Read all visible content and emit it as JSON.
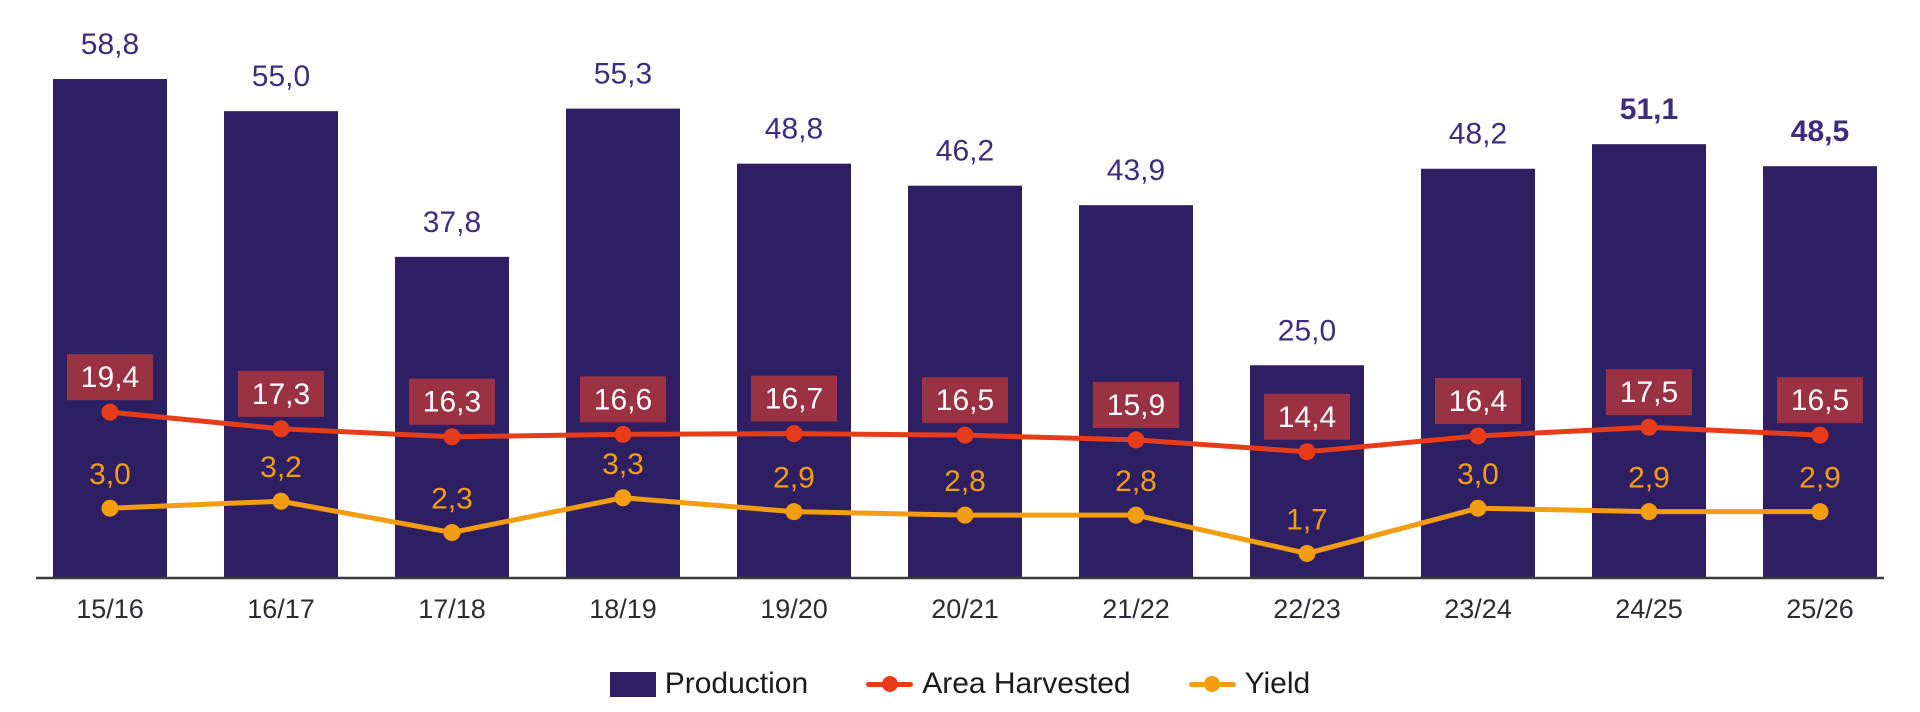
{
  "chart_data": {
    "type": "bar",
    "title": "",
    "categories": [
      "15/16",
      "16/17",
      "17/18",
      "18/19",
      "19/20",
      "20/21",
      "21/22",
      "22/23",
      "23/24",
      "24/25",
      "25/26"
    ],
    "decimal_separator": ",",
    "grid": false,
    "legend_position": "bottom",
    "value_labels": true,
    "series": [
      {
        "name": "Production",
        "type": "bar",
        "color": "#2e1f63",
        "label_color": "#3e2d7e",
        "values": [
          58.8,
          55.0,
          37.8,
          55.3,
          48.8,
          46.2,
          43.9,
          25.0,
          48.2,
          51.1,
          48.5
        ],
        "label_bold": [
          false,
          false,
          false,
          false,
          false,
          false,
          false,
          false,
          false,
          true,
          true
        ]
      },
      {
        "name": "Area Harvested",
        "type": "line",
        "color": "#e73c1a",
        "label_bg": "#9a3244",
        "label_color": "#ffffff",
        "values": [
          19.4,
          17.3,
          16.3,
          16.6,
          16.7,
          16.5,
          15.9,
          14.4,
          16.4,
          17.5,
          16.5
        ]
      },
      {
        "name": "Yield",
        "type": "line",
        "color": "#f39d13",
        "label_color": "#f39d13",
        "values": [
          3.0,
          3.2,
          2.3,
          3.3,
          2.9,
          2.8,
          2.8,
          1.7,
          3.0,
          2.9,
          2.9
        ]
      }
    ],
    "axes": {
      "x_line_visible": true,
      "x_line_color": "#3a3a3a",
      "x_label_color": "#2c2c34",
      "y_left_visible": false,
      "y_right_visible": false
    }
  },
  "legend": {
    "items": [
      {
        "label": "Production"
      },
      {
        "label": "Area Harvested"
      },
      {
        "label": "Yield"
      }
    ]
  }
}
